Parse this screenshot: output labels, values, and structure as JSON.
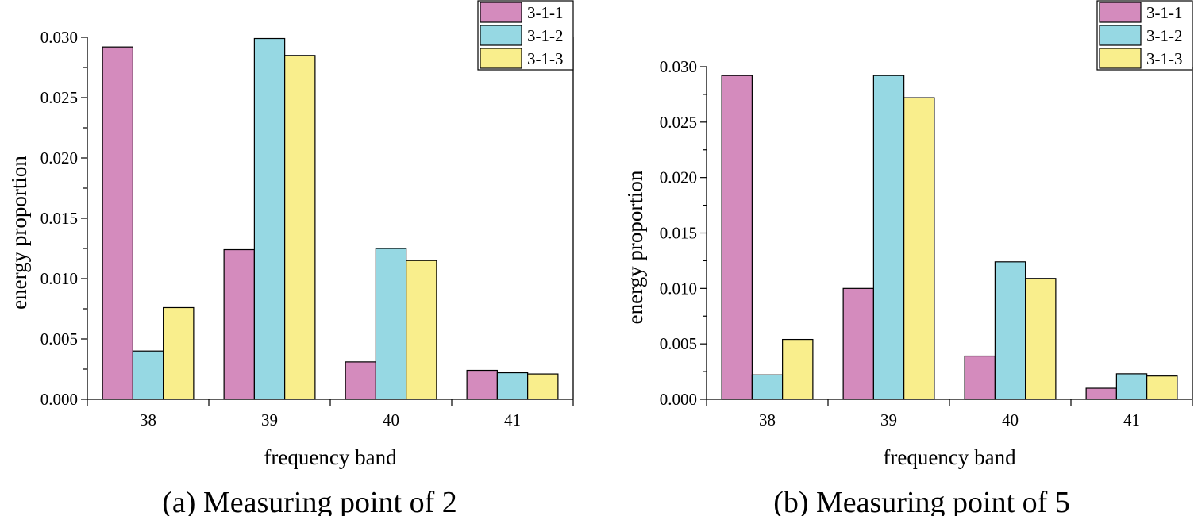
{
  "chart_data": [
    {
      "type": "bar",
      "caption": "(a) Measuring point of 2",
      "xlabel": "frequency band",
      "ylabel": "energy proportion",
      "categories": [
        "38",
        "39",
        "40",
        "41"
      ],
      "series": [
        {
          "name": "3-1-1",
          "color": "#d48bbd",
          "values": [
            0.0292,
            0.0124,
            0.0031,
            0.0024
          ]
        },
        {
          "name": "3-1-2",
          "color": "#96d8e3",
          "values": [
            0.004,
            0.0299,
            0.0125,
            0.0022
          ]
        },
        {
          "name": "3-1-3",
          "color": "#f9ee8c",
          "values": [
            0.0076,
            0.0285,
            0.0115,
            0.0021
          ]
        }
      ],
      "ylim": [
        0,
        0.03
      ],
      "yticks": [
        "0.000",
        "0.005",
        "0.010",
        "0.015",
        "0.020",
        "0.025",
        "0.030"
      ],
      "legend_position": "top-right"
    },
    {
      "type": "bar",
      "caption": "(b) Measuring point of 5",
      "xlabel": "frequency band",
      "ylabel": "energy proportion",
      "categories": [
        "38",
        "39",
        "40",
        "41"
      ],
      "series": [
        {
          "name": "3-1-1",
          "color": "#d48bbd",
          "values": [
            0.0292,
            0.01,
            0.0039,
            0.001
          ]
        },
        {
          "name": "3-1-2",
          "color": "#96d8e3",
          "values": [
            0.0022,
            0.0292,
            0.0124,
            0.0023
          ]
        },
        {
          "name": "3-1-3",
          "color": "#f9ee8c",
          "values": [
            0.0054,
            0.0272,
            0.0109,
            0.0021
          ]
        }
      ],
      "ylim": [
        0,
        0.03
      ],
      "yticks": [
        "0.000",
        "0.005",
        "0.010",
        "0.015",
        "0.020",
        "0.025",
        "0.030"
      ],
      "legend_position": "top-right"
    }
  ]
}
